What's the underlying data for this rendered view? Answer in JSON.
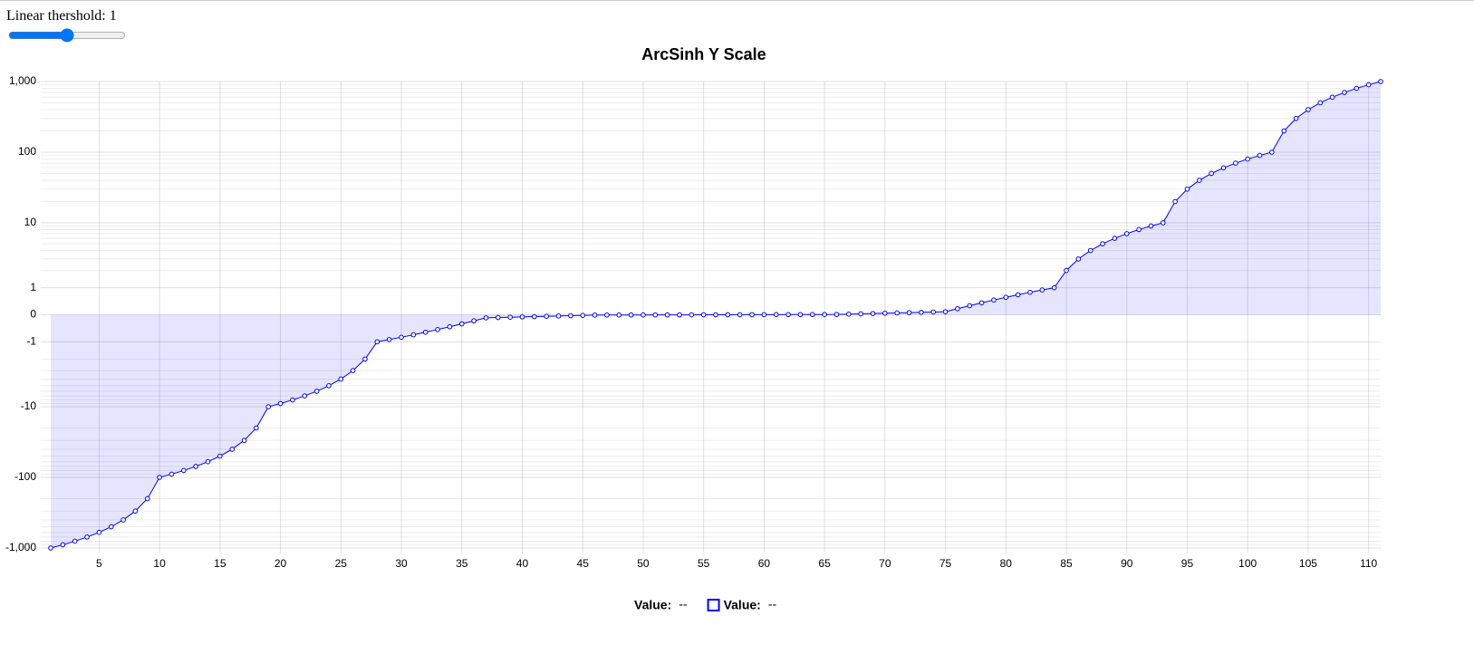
{
  "control": {
    "label": "Linear thershold:",
    "value": 1
  },
  "chart_data": {
    "type": "line",
    "title": "ArcSinh Y Scale",
    "scale": "asinh",
    "grid": true,
    "x": [
      1,
      2,
      3,
      4,
      5,
      6,
      7,
      8,
      9,
      10,
      11,
      12,
      13,
      14,
      15,
      16,
      17,
      18,
      19,
      20,
      21,
      22,
      23,
      24,
      25,
      26,
      27,
      28,
      29,
      30,
      31,
      32,
      33,
      34,
      35,
      36,
      37,
      38,
      39,
      40,
      41,
      42,
      43,
      44,
      45,
      46,
      47,
      48,
      49,
      50,
      51,
      52,
      53,
      54,
      55,
      56,
      57,
      58,
      59,
      60,
      61,
      62,
      63,
      64,
      65,
      66,
      67,
      68,
      69,
      70,
      71,
      72,
      73,
      74,
      75,
      76,
      77,
      78,
      79,
      80,
      81,
      82,
      83,
      84,
      85,
      86,
      87,
      88,
      89,
      90,
      91,
      92,
      93,
      94,
      95,
      96,
      97,
      98,
      99,
      100,
      101,
      102,
      103,
      104,
      105,
      106,
      107,
      108,
      109,
      110,
      111
    ],
    "series": [
      {
        "color": "#0000ff",
        "fill": "rgba(0,0,255,0.1)",
        "values": [
          -1000,
          -900,
          -800,
          -700,
          -600,
          -500,
          -400,
          -300,
          -200,
          -100,
          -90,
          -80,
          -70,
          -60,
          -50,
          -40,
          -30,
          -20,
          -10,
          -9,
          -8,
          -7,
          -6,
          -5,
          -4,
          -3,
          -2,
          -1,
          -0.9,
          -0.8,
          -0.7,
          -0.6,
          -0.5,
          -0.4,
          -0.3,
          -0.2,
          -0.1,
          -0.09,
          -0.08,
          -0.07,
          -0.06,
          -0.05,
          -0.04,
          -0.03,
          -0.02,
          -0.01,
          -0.009,
          -0.008,
          -0.007,
          -0.006,
          -0.005,
          -0.004,
          -0.003,
          -0.002,
          -0.001,
          0,
          0.001,
          0.002,
          0.003,
          0.004,
          0.005,
          0.006,
          0.007,
          0.008,
          0.009,
          0.01,
          0.02,
          0.03,
          0.04,
          0.05,
          0.06,
          0.07,
          0.08,
          0.09,
          0.1,
          0.2,
          0.3,
          0.4,
          0.5,
          0.6,
          0.7,
          0.8,
          0.9,
          1,
          2,
          3,
          4,
          5,
          6,
          7,
          8,
          9,
          10,
          20,
          30,
          40,
          50,
          60,
          70,
          80,
          90,
          100,
          200,
          300,
          400,
          500,
          600,
          700,
          800,
          900,
          1000
        ]
      }
    ],
    "xlim": [
      1,
      111
    ],
    "xticks": [
      5,
      10,
      15,
      20,
      25,
      30,
      35,
      40,
      45,
      50,
      55,
      60,
      65,
      70,
      75,
      80,
      85,
      90,
      95,
      100,
      105,
      110
    ],
    "ylim": [
      -1000,
      1000
    ],
    "yticks": [
      {
        "value": 1000,
        "label": "1,000"
      },
      100,
      10,
      1,
      0,
      -1,
      -10,
      -100,
      {
        "value": -1000,
        "label": "-1,000"
      }
    ],
    "yminor": [
      2,
      3,
      4,
      5,
      6,
      7,
      8,
      9,
      20,
      30,
      40,
      50,
      60,
      70,
      80,
      90,
      200,
      300,
      400,
      500,
      600,
      700,
      800,
      900,
      -2,
      -3,
      -4,
      -5,
      -6,
      -7,
      -8,
      -9,
      -20,
      -30,
      -40,
      -50,
      -60,
      -70,
      -80,
      -90,
      -200,
      -300,
      -400,
      -500,
      -600,
      -700,
      -800,
      -900
    ],
    "legend": [
      {
        "label": "Value:",
        "value": "--"
      },
      {
        "label": "Value:",
        "value": "--",
        "color": "#0000ff"
      }
    ]
  }
}
